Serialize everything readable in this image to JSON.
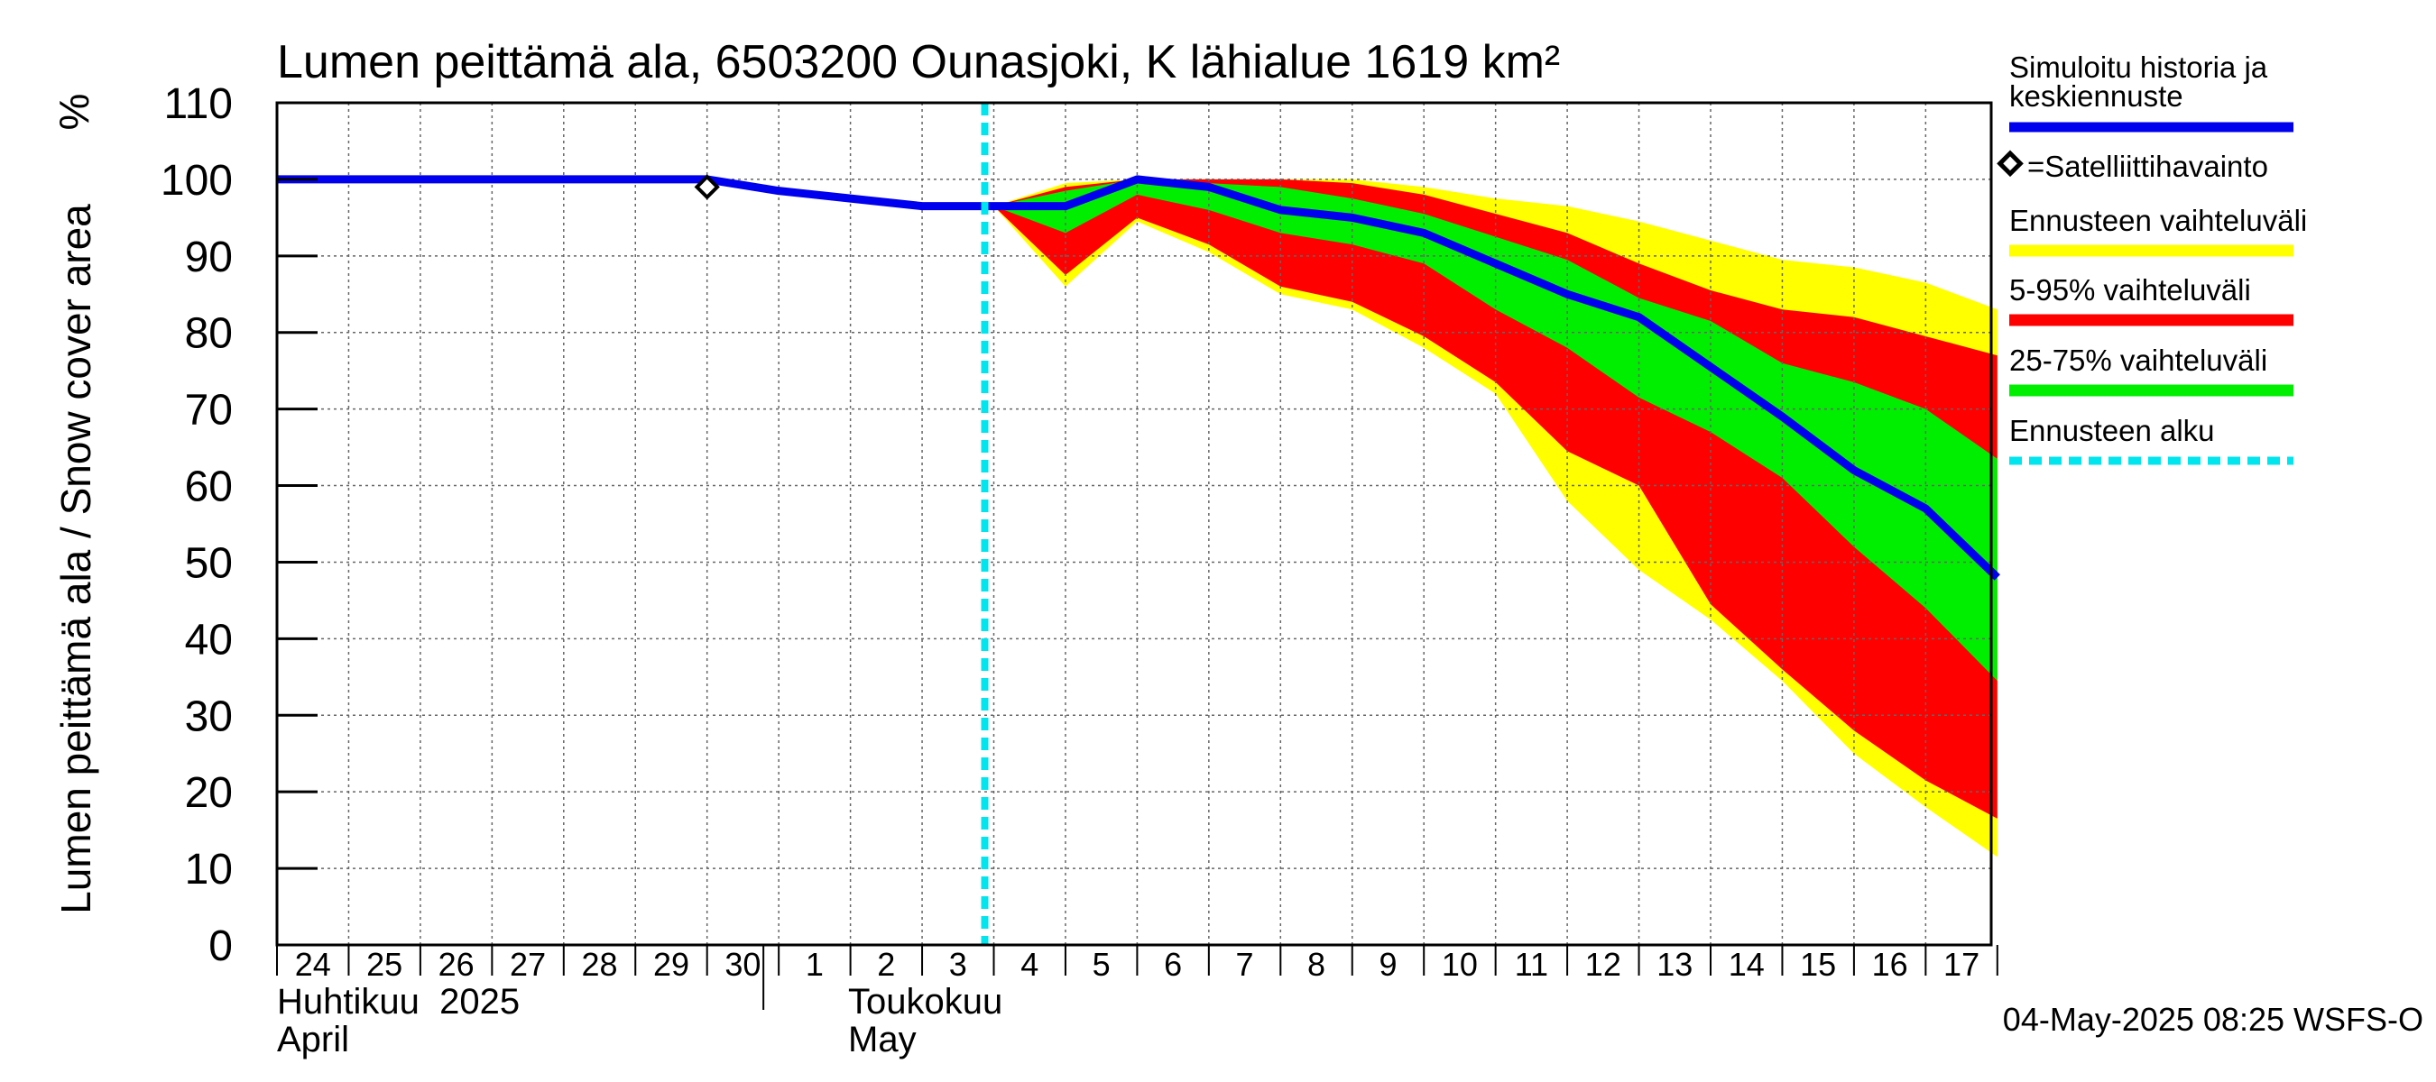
{
  "chart_data": {
    "type": "area",
    "title": "Lumen peittämä ala, 6503200 Ounasjoki, K lähialue 1619 km²",
    "ylabel": "Lumen peittämä ala / Snow cover area",
    "yunit": "%",
    "ylim": [
      0,
      110
    ],
    "yticks": [
      0,
      10,
      20,
      30,
      40,
      50,
      60,
      70,
      80,
      90,
      100,
      110
    ],
    "xlim": [
      "2025-04-24",
      "2025-05-17"
    ],
    "x_tick_labels": [
      "24",
      "25",
      "26",
      "27",
      "28",
      "29",
      "30",
      "1",
      "2",
      "3",
      "4",
      "5",
      "6",
      "7",
      "8",
      "9",
      "10",
      "11",
      "12",
      "13",
      "14",
      "15",
      "16",
      "17"
    ],
    "month_labels": [
      {
        "fi": "Huhtikuu  2025",
        "en": "April"
      },
      {
        "fi": "Toukokuu",
        "en": "May"
      }
    ],
    "grid": true,
    "legend_position": "right",
    "forecast_start": "2025-05-04",
    "timestamp": "04-May-2025 08:25 WSFS-O",
    "colors": {
      "median": "#0000ee",
      "range": "#ffff00",
      "p5_95": "#ff0000",
      "p25_75": "#00ee00",
      "forecast_start": "#00e5ee",
      "satellite": "#000000"
    },
    "legend": [
      {
        "key": "median",
        "label": "Simuloitu historia ja keskiennuste",
        "label_lines": [
          "Simuloitu historia ja",
          "keskiennuste"
        ]
      },
      {
        "key": "satellite",
        "label": "=Satelliittihavainto"
      },
      {
        "key": "range",
        "label": "Ennusteen vaihteluväli"
      },
      {
        "key": "p5_95",
        "label": "5-95% vaihteluväli"
      },
      {
        "key": "p25_75",
        "label": "25-75% vaihteluväli"
      },
      {
        "key": "forecast_start",
        "label": "Ennusteen alku"
      }
    ],
    "series": [
      {
        "name": "Simuloitu historia ja keskiennuste",
        "x": [
          "2025-04-24",
          "2025-04-25",
          "2025-04-26",
          "2025-04-27",
          "2025-04-28",
          "2025-04-29",
          "2025-04-30",
          "2025-05-01",
          "2025-05-02",
          "2025-05-03",
          "2025-05-04",
          "2025-05-05",
          "2025-05-06",
          "2025-05-07",
          "2025-05-08",
          "2025-05-09",
          "2025-05-10",
          "2025-05-11",
          "2025-05-12",
          "2025-05-13",
          "2025-05-14",
          "2025-05-15",
          "2025-05-16",
          "2025-05-17",
          "2025-05-18"
        ],
        "values": [
          100,
          100,
          100,
          100,
          100,
          100,
          100,
          98.5,
          97.5,
          96.5,
          96.5,
          96.5,
          100,
          99,
          96,
          95,
          93,
          89,
          85,
          82,
          75.5,
          69,
          62,
          57,
          48
        ]
      }
    ],
    "bands": {
      "x": [
        "2025-05-04",
        "2025-05-05",
        "2025-05-06",
        "2025-05-07",
        "2025-05-08",
        "2025-05-09",
        "2025-05-10",
        "2025-05-11",
        "2025-05-12",
        "2025-05-13",
        "2025-05-14",
        "2025-05-15",
        "2025-05-16",
        "2025-05-17",
        "2025-05-18"
      ],
      "range": {
        "upper": [
          96.5,
          99.5,
          100,
          100,
          100,
          100,
          99,
          97.5,
          96.5,
          94.5,
          92,
          89.5,
          88.5,
          86.5,
          83
        ],
        "lower": [
          96.5,
          86,
          94.5,
          90.5,
          85,
          83,
          78,
          72,
          58,
          49,
          42.5,
          34.5,
          25,
          18,
          11.5
        ]
      },
      "p5_95": {
        "upper": [
          96.5,
          99,
          100,
          100,
          100,
          99.5,
          98,
          95.5,
          93,
          89,
          85.5,
          83,
          82,
          79.5,
          77
        ],
        "lower": [
          96.5,
          87.5,
          95,
          91.5,
          86,
          84,
          79.5,
          73.5,
          64.5,
          60,
          44.5,
          36,
          28,
          21.5,
          16.5
        ]
      },
      "p25_75": {
        "upper": [
          96.5,
          98.5,
          100,
          99.5,
          99,
          97.5,
          95.5,
          92.5,
          89.5,
          84.5,
          81.5,
          76,
          73.5,
          70,
          63.5
        ],
        "lower": [
          96.5,
          93,
          98,
          96,
          93,
          91.5,
          89,
          83,
          78,
          71.5,
          67,
          61,
          52,
          44,
          34.5
        ]
      }
    },
    "satellite_observations": [
      {
        "x": "2025-04-30",
        "y": 99
      }
    ]
  }
}
